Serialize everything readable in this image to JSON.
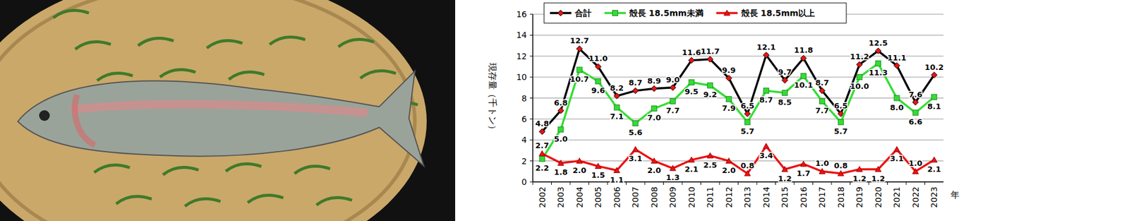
{
  "chart_data": {
    "type": "line",
    "y_label": "現存量（千トン）",
    "x_label": "年",
    "categories": [
      "2002",
      "2003",
      "2004",
      "2005",
      "2006",
      "2007",
      "2008",
      "2009",
      "2010",
      "2011",
      "2012",
      "2013",
      "2014",
      "2015",
      "2016",
      "2017",
      "2018",
      "2019",
      "2020",
      "2021",
      "2022",
      "2023"
    ],
    "series": [
      {
        "name": "合計",
        "color": "#000000",
        "marker": "diamond",
        "values": [
          4.8,
          6.8,
          12.7,
          11.0,
          8.2,
          8.7,
          8.9,
          9.0,
          11.6,
          11.7,
          9.9,
          6.5,
          12.1,
          9.7,
          11.8,
          8.7,
          6.5,
          11.2,
          12.5,
          11.1,
          7.6,
          10.2
        ],
        "value_labels": [
          "4.8",
          "6.8",
          "12.7",
          "11.0",
          "8.2",
          "8.7",
          "8.9",
          "9.0",
          "11.6",
          "11.7",
          "9.9",
          "6.5",
          "12.1",
          "9.7",
          "11.8",
          "8.7",
          "6.5",
          "11.2",
          "12.5",
          "11.1",
          "7.6",
          "10.2"
        ]
      },
      {
        "name": "殻長 18.5mm未満",
        "color": "#33dd33",
        "marker": "square",
        "values": [
          2.2,
          5.0,
          10.7,
          9.6,
          7.1,
          5.6,
          7.0,
          7.7,
          9.5,
          9.2,
          7.9,
          5.7,
          8.7,
          8.5,
          10.1,
          7.7,
          5.7,
          10.0,
          11.3,
          8.0,
          6.6,
          8.1
        ],
        "value_labels": [
          "2.2",
          "5.0",
          "10.7",
          "9.6",
          "7.1",
          "5.6",
          "7.0",
          "7.7",
          "9.5",
          "9.2",
          "7.9",
          "5.7",
          "8.7",
          "8.5",
          "10.1",
          "7.7",
          "5.7",
          "10.0",
          "11.3",
          "8.0",
          "6.6",
          "8.1"
        ]
      },
      {
        "name": "殻長 18.5mm以上",
        "color": "#ee1111",
        "marker": "triangle",
        "values": [
          2.7,
          1.8,
          2.0,
          1.5,
          1.1,
          3.1,
          2.0,
          1.3,
          2.1,
          2.5,
          2.0,
          0.8,
          3.4,
          1.2,
          1.7,
          1.0,
          0.8,
          1.2,
          1.2,
          3.1,
          1.0,
          2.1
        ],
        "value_labels": [
          "2.7",
          "1.8",
          "2.0",
          "1.5",
          "1.1",
          "3.1",
          "2.0",
          "1.3",
          "2.1",
          "2.5",
          "2.0",
          "0.8",
          "3.4",
          "1.2",
          "1.7",
          "1.0",
          "0.8",
          "1.2",
          "1.2",
          "3.1",
          "1.0",
          "2.1"
        ]
      }
    ],
    "ylim": [
      0,
      16
    ],
    "yticks": [
      0,
      2,
      4,
      6,
      8,
      10,
      12,
      14,
      16
    ],
    "grid": true,
    "legend": "top",
    "data_labels": true
  }
}
